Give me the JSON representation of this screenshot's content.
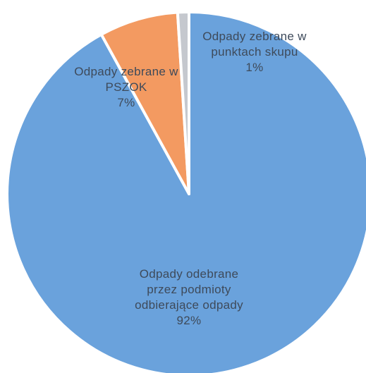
{
  "chart_data": {
    "type": "pie",
    "slices": [
      {
        "label_lines": [
          "Odpady odebrane",
          "przez podmioty",
          "odbierające odpady"
        ],
        "percent_label": "92%",
        "value": 92,
        "color": "#6aa2dc"
      },
      {
        "label_lines": [
          "Odpady zebrane w",
          "PSZOK"
        ],
        "percent_label": "7%",
        "value": 7,
        "color": "#f39a61"
      },
      {
        "label_lines": [
          "Odpady zebrane w",
          "punktach skupu"
        ],
        "percent_label": "1%",
        "value": 1,
        "color": "#c5c8ce"
      }
    ],
    "label_color": "#3e4a5a"
  }
}
